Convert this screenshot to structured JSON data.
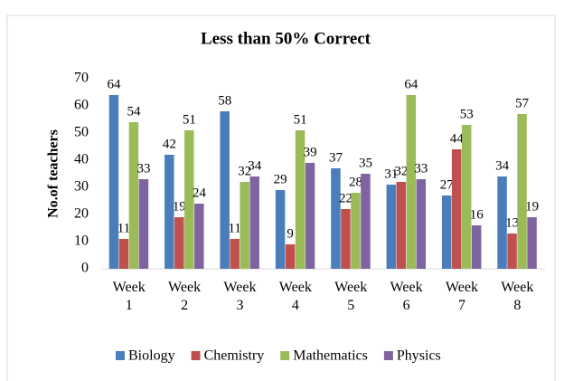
{
  "chart_data": {
    "type": "bar",
    "title": "Less than 50% Correct",
    "y_label": "No.of teachers",
    "categories": [
      "Week 1",
      "Week 2",
      "Week 3",
      "Week 4",
      "Week 5",
      "Week 6",
      "Week 7",
      "Week 8"
    ],
    "series": [
      {
        "name": "Biology",
        "color": "#4a7ebb",
        "values": [
          64,
          42,
          58,
          29,
          37,
          31,
          27,
          34
        ]
      },
      {
        "name": "Chemistry",
        "color": "#c0504d",
        "values": [
          11,
          19,
          11,
          9,
          22,
          32,
          44,
          13
        ]
      },
      {
        "name": "Mathematics",
        "color": "#9bbb59",
        "values": [
          54,
          51,
          32,
          51,
          28,
          64,
          53,
          57
        ]
      },
      {
        "name": "Physics",
        "color": "#8064a2",
        "values": [
          33,
          24,
          34,
          39,
          35,
          33,
          16,
          19
        ]
      }
    ],
    "ylim": [
      0,
      70
    ],
    "yticks": [
      0,
      10,
      20,
      30,
      40,
      50,
      60,
      70
    ],
    "grid": false,
    "legend": "bottom"
  }
}
